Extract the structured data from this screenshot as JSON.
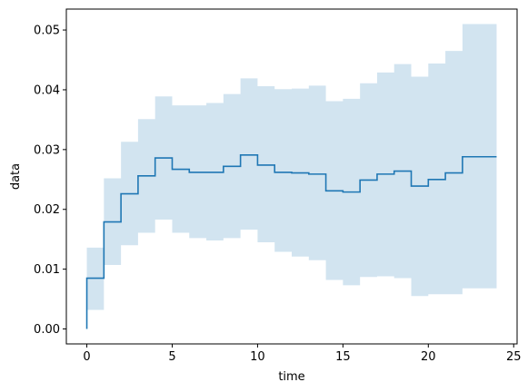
{
  "chart_data": {
    "type": "line",
    "title": "",
    "xlabel": "time",
    "ylabel": "data",
    "xlim": [
      -1.2,
      25.2
    ],
    "ylim": [
      -0.0025,
      0.0535
    ],
    "xticks": [
      0,
      5,
      10,
      15,
      20,
      25
    ],
    "yticks": [
      0.0,
      0.01,
      0.02,
      0.03,
      0.04,
      0.05
    ],
    "ytick_labels": [
      "0.00",
      "0.01",
      "0.02",
      "0.03",
      "0.04",
      "0.05"
    ],
    "grid": false,
    "drawstyle": "steps-post",
    "colors": {
      "line": "#1f77b4",
      "band": "#1f77b4",
      "band_opacity": 0.2
    },
    "series": [
      {
        "x": [
          0,
          0,
          1,
          2,
          3,
          4,
          5,
          6,
          7,
          8,
          9,
          10,
          11,
          12,
          13,
          14,
          15,
          16,
          17,
          18,
          19,
          20,
          21,
          22,
          23,
          24
        ],
        "values": [
          0.0,
          0.0085,
          0.0179,
          0.0226,
          0.0256,
          0.0286,
          0.0267,
          0.0262,
          0.0262,
          0.0272,
          0.0291,
          0.0274,
          0.0262,
          0.0261,
          0.0259,
          0.0231,
          0.0229,
          0.0249,
          0.0259,
          0.0264,
          0.0239,
          0.025,
          0.0261,
          0.0288,
          0.0288,
          0.0288
        ]
      }
    ],
    "band": {
      "x": [
        0,
        1,
        2,
        3,
        4,
        5,
        6,
        7,
        8,
        9,
        10,
        11,
        12,
        13,
        14,
        15,
        16,
        17,
        18,
        19,
        20,
        21,
        22,
        23,
        24
      ],
      "lower": [
        0.0032,
        0.0107,
        0.014,
        0.0161,
        0.0183,
        0.0161,
        0.0152,
        0.0148,
        0.0152,
        0.0166,
        0.0145,
        0.0129,
        0.0121,
        0.0115,
        0.0082,
        0.0073,
        0.0087,
        0.0088,
        0.0085,
        0.0055,
        0.0058,
        0.0058,
        0.0068,
        0.0068,
        0.0068
      ],
      "upper": [
        0.0136,
        0.0252,
        0.0313,
        0.0351,
        0.0389,
        0.0374,
        0.0374,
        0.0378,
        0.0393,
        0.0419,
        0.0406,
        0.0401,
        0.0402,
        0.0407,
        0.0381,
        0.0385,
        0.0411,
        0.0429,
        0.0443,
        0.0422,
        0.0444,
        0.0465,
        0.051,
        0.051,
        0.051
      ]
    }
  }
}
